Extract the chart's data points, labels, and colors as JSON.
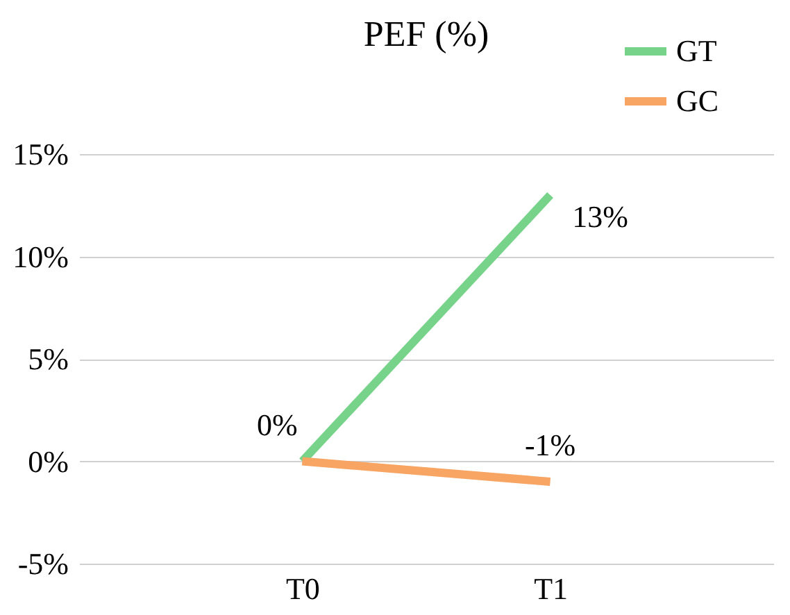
{
  "chart_data": {
    "type": "line",
    "title": "PEF (%)",
    "categories": [
      "T0",
      "T1"
    ],
    "series": [
      {
        "name": "GT",
        "color": "#77d38a",
        "values": [
          0,
          13
        ],
        "value_labels": [
          "0%",
          "13%"
        ]
      },
      {
        "name": "GC",
        "color": "#f8a462",
        "values": [
          0,
          -1
        ],
        "value_labels": [
          null,
          "-1%"
        ]
      }
    ],
    "ylim": [
      -5,
      15
    ],
    "yticks": [
      {
        "value": -5,
        "label": "-5%"
      },
      {
        "value": 0,
        "label": "0%"
      },
      {
        "value": 5,
        "label": "5%"
      },
      {
        "value": 10,
        "label": "10%"
      },
      {
        "value": 15,
        "label": "15%"
      }
    ],
    "grid": "y",
    "legend": "top right",
    "marker": "none",
    "line_style": "solid"
  }
}
